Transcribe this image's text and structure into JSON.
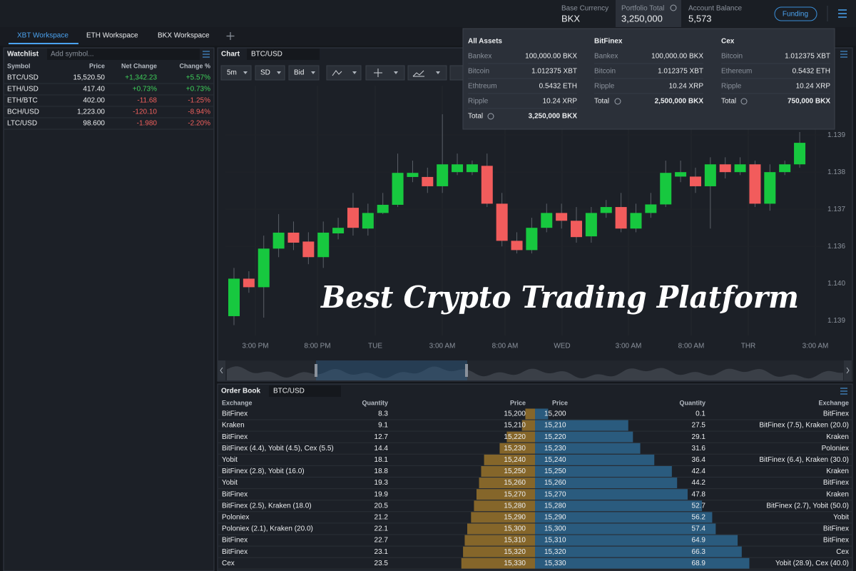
{
  "header": {
    "base_currency_label": "Base Currency",
    "base_currency": "BKX",
    "portfolio_total_label": "Portfolio Total",
    "portfolio_total": "3,250,000",
    "account_balance_label": "Account Balance",
    "account_balance": "5,573",
    "funding_button": "Funding"
  },
  "tabs": [
    "XBT Workspace",
    "ETH Workspace",
    "BKX Workspace"
  ],
  "portfolio_dropdown": [
    {
      "title": "All Assets",
      "rows": [
        [
          "Bankex",
          "100,000.00  BKX"
        ],
        [
          "Bitcoin",
          "1.012375 XBT"
        ],
        [
          "Ethtreum",
          "0.5432 ETH"
        ],
        [
          "Ripple",
          "10.24 XRP"
        ]
      ],
      "total_label": "Total",
      "total": "3,250,000 BKX"
    },
    {
      "title": "BitFinex",
      "rows": [
        [
          "Bankex",
          "100,000.00  BKX"
        ],
        [
          "Bitcoin",
          "1.012375 XBT"
        ],
        [
          "Ripple",
          "10.24 XRP"
        ]
      ],
      "total_label": "Total",
      "total": "2,500,000 BKX"
    },
    {
      "title": "Cex",
      "rows": [
        [
          "Bitcoin",
          "1.012375 XBT"
        ],
        [
          "Ethereum",
          "0.5432 ETH"
        ],
        [
          "Ripple",
          "10.24 XRP"
        ]
      ],
      "total_label": "Total",
      "total": "750,000 BKX"
    }
  ],
  "watchlist": {
    "title": "Watchlist",
    "placeholder": "Add symbol...",
    "columns": [
      "Symbol",
      "Price",
      "Net Change",
      "Change %"
    ],
    "rows": [
      [
        "BTC/USD",
        "15,520.50",
        "+1,342.23",
        "+5.57%"
      ],
      [
        "ETH/USD",
        "417.40",
        "+0.73%",
        "+0.73%"
      ],
      [
        "ETH/BTC",
        "402.00",
        "-11.68",
        "-1.25%"
      ],
      [
        "BCH/USD",
        "1,223.00",
        "-120.10",
        "-8.94%"
      ],
      [
        "LTC/USD",
        "98.600",
        "-1.980",
        "-2.20%"
      ]
    ]
  },
  "chart_data": {
    "type": "candlestick",
    "title": "Chart",
    "symbol": "BTC/USD",
    "toolbar": [
      "5m",
      "SD",
      "Bid"
    ],
    "open": [
      1.13412,
      1.13513,
      1.1349,
      1.13594,
      1.13637,
      1.13613,
      1.13571,
      1.13635,
      1.13704,
      1.13648,
      1.1369,
      1.13712,
      1.13787,
      1.13787,
      1.13762,
      1.138,
      1.138,
      1.13817,
      1.13715,
      1.13615,
      1.1359,
      1.1365,
      1.1369,
      1.13669,
      1.13627,
      1.1369,
      1.13706,
      1.13648,
      1.1369,
      1.13713,
      1.13788,
      1.13788,
      1.13762,
      1.13821,
      1.138,
      1.13821,
      1.13715,
      1.138,
      1.13821
    ],
    "high": [
      1.13542,
      1.13533,
      1.13629,
      1.13687,
      1.13667,
      1.13638,
      1.13667,
      1.13677,
      1.13744,
      1.13715,
      1.13744,
      1.1385,
      1.13831,
      1.13812,
      1.13956,
      1.1385,
      1.13831,
      1.1385,
      1.13744,
      1.13638,
      1.13677,
      1.13715,
      1.13715,
      1.13706,
      1.13706,
      1.13725,
      1.13744,
      1.13715,
      1.13744,
      1.13831,
      1.13831,
      1.13812,
      1.1384,
      1.1384,
      1.1384,
      1.13831,
      1.13821,
      1.13831,
      1.13908
    ],
    "low": [
      1.13388,
      1.13475,
      1.13408,
      1.13571,
      1.1359,
      1.13552,
      1.13542,
      1.13619,
      1.13629,
      1.13629,
      1.13687,
      1.13706,
      1.13773,
      1.13744,
      1.13744,
      1.13792,
      1.13792,
      1.13706,
      1.136,
      1.13581,
      1.13581,
      1.13638,
      1.13648,
      1.1361,
      1.1361,
      1.13677,
      1.13638,
      1.13638,
      1.13677,
      1.13706,
      1.13773,
      1.13744,
      1.13648,
      1.13783,
      1.13792,
      1.13706,
      1.13696,
      1.13792,
      1.13812
    ],
    "close": [
      1.13513,
      1.1349,
      1.13594,
      1.13637,
      1.1361,
      1.13571,
      1.13637,
      1.1365,
      1.1365,
      1.1369,
      1.13712,
      1.13798,
      1.13798,
      1.13762,
      1.13821,
      1.13821,
      1.13821,
      1.13715,
      1.13615,
      1.1359,
      1.1365,
      1.1369,
      1.13669,
      1.13625,
      1.1369,
      1.13706,
      1.13648,
      1.1369,
      1.13713,
      1.13798,
      1.138,
      1.13762,
      1.13821,
      1.138,
      1.13821,
      1.13715,
      1.138,
      1.13821,
      1.13879
    ],
    "up_color": "#17c83f",
    "down_color": "#f25c5c",
    "ylim": [
      1.1336,
      1.14033
    ],
    "yticks": [
      1.139,
      1.138,
      1.137,
      1.136
    ],
    "extra_y_labels": [
      "1.140",
      "1.139"
    ],
    "x_labels": [
      "3:00 PM",
      "8:00 PM",
      "TUE",
      "3:00 AM",
      "8:00 AM",
      "WED",
      "3:00 AM",
      "8:00 AM",
      "THR",
      "3:00 AM"
    ]
  },
  "order_book": {
    "title": "Order Book",
    "symbol": "BTC/USD",
    "columns": [
      "Exchange",
      "Quantity",
      "Price",
      "Price",
      "Quantity",
      "Exchange"
    ],
    "bids": [
      [
        "BitFinex",
        8.3,
        "15,200"
      ],
      [
        "Kraken",
        9.1,
        "15,210"
      ],
      [
        "BitFinex",
        12.7,
        "15,220"
      ],
      [
        "BitFinex (4.4), Yobit (4.5), Cex (5.5)",
        14.4,
        "15,230"
      ],
      [
        "Yobit",
        18.1,
        "15,240"
      ],
      [
        "BitFinex (2.8), Yobit (16.0)",
        18.8,
        "15,250"
      ],
      [
        "Yobit",
        19.3,
        "15,260"
      ],
      [
        "BitFinex",
        19.9,
        "15,270"
      ],
      [
        "BitFinex (2.5), Kraken (18.0)",
        20.5,
        "15,280"
      ],
      [
        "Poloniex",
        21.2,
        "15,290"
      ],
      [
        "Poloniex (2.1), Kraken (20.0)",
        22.1,
        "15,300"
      ],
      [
        "BitFinex",
        22.7,
        "15,310"
      ],
      [
        "BitFinex",
        23.1,
        "15,320"
      ],
      [
        "Cex",
        23.5,
        "15,330"
      ]
    ],
    "asks": [
      [
        "15,200",
        0.1,
        "BitFinex"
      ],
      [
        "15,210",
        27.5,
        "BitFinex (7.5), Kraken (20.0)"
      ],
      [
        "15,220",
        29.1,
        "Kraken"
      ],
      [
        "15,230",
        31.6,
        "Poloniex"
      ],
      [
        "15,240",
        36.4,
        "BitFinex (6.4), Kraken (30.0)"
      ],
      [
        "15,250",
        42.4,
        "Kraken"
      ],
      [
        "15,260",
        44.2,
        "BitFinex"
      ],
      [
        "15,270",
        47.8,
        "Kraken"
      ],
      [
        "15,280",
        52.7,
        "BitFinex (2.7), Yobit (50.0)"
      ],
      [
        "15,290",
        56.2,
        "Yobit"
      ],
      [
        "15,300",
        57.4,
        "BitFinex"
      ],
      [
        "15,310",
        64.9,
        "BitFinex"
      ],
      [
        "15,320",
        66.3,
        "Cex"
      ],
      [
        "15,330",
        68.9,
        "Yobit (28.9), Cex (40.0)"
      ]
    ],
    "bid_color": "#85662a",
    "ask_color": "#2a5b7e"
  },
  "overlay_title": "Best Crypto Trading Platform"
}
